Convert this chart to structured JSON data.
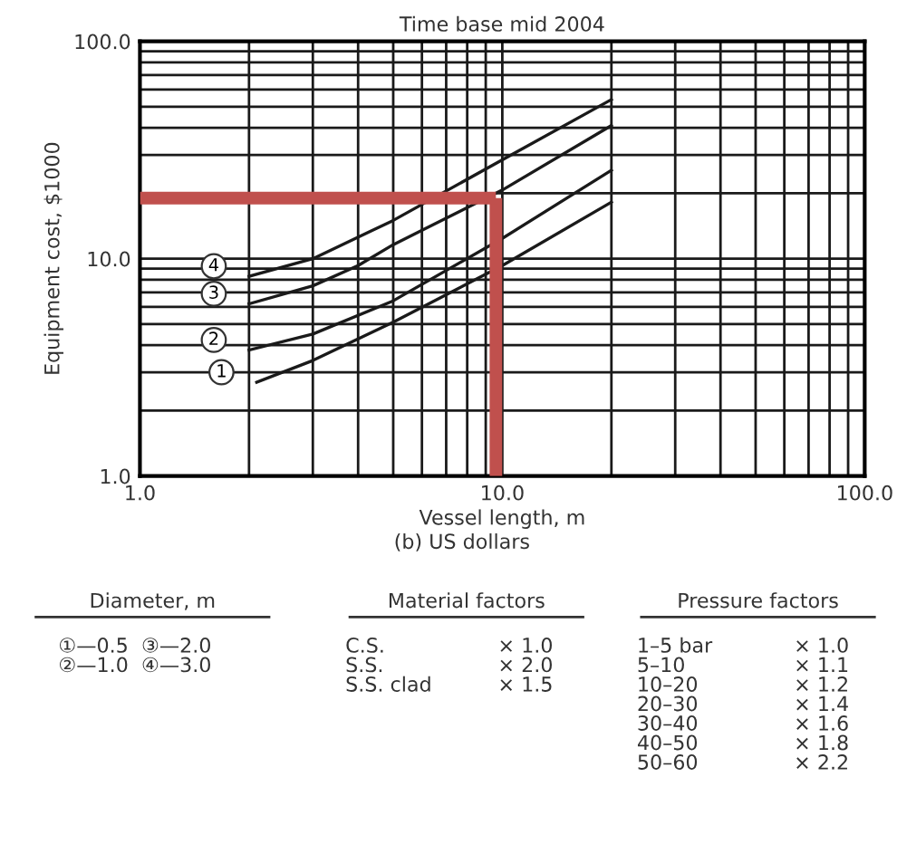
{
  "chart_data": {
    "type": "line",
    "title": "Time base mid 2004",
    "xlabel": "Vessel length, m",
    "ylabel": "Equipment cost, $1000",
    "log": "xy",
    "xlim": [
      1,
      100
    ],
    "ylim": [
      1,
      100
    ],
    "xticks": [
      {
        "value": 1,
        "label": "1.0"
      },
      {
        "value": 10,
        "label": "10.0"
      },
      {
        "value": 100,
        "label": "100.0"
      }
    ],
    "yticks": [
      {
        "value": 1,
        "label": "1.0"
      },
      {
        "value": 10,
        "label": "10.0"
      },
      {
        "value": 100,
        "label": "100.0"
      }
    ],
    "grid": true,
    "marker": "none",
    "line_style": "solid",
    "legend": false,
    "series": [
      {
        "name": "1",
        "color": "#1a1a1a",
        "x": [
          2.1,
          3,
          5,
          10,
          20
        ],
        "values": [
          2.7,
          3.4,
          5.1,
          9.3,
          18.2
        ]
      },
      {
        "name": "2",
        "color": "#1a1a1a",
        "x": [
          2,
          3,
          5,
          10,
          20
        ],
        "values": [
          3.8,
          4.5,
          6.4,
          12.4,
          25.5
        ]
      },
      {
        "name": "3",
        "color": "#1a1a1a",
        "x": [
          2,
          3,
          4,
          5,
          10,
          20
        ],
        "values": [
          6.2,
          7.5,
          9.3,
          11.6,
          20.7,
          41
        ]
      },
      {
        "name": "4",
        "color": "#1a1a1a",
        "x": [
          2,
          3,
          5,
          10,
          20
        ],
        "values": [
          8.3,
          10,
          15,
          28.5,
          54
        ]
      }
    ],
    "ref_lines": [
      {
        "axis": "x",
        "value": 9.6,
        "color": "#c0504d"
      },
      {
        "axis": "y",
        "value": 19,
        "color": "#c0504d"
      }
    ],
    "annotations": [
      "(b) US dollars",
      "Diameter, m",
      "①—0.5  ③—2.0\n②—1.0  ④—3.0",
      "Material factors",
      "C.S.\nS.S.\nS.S. clad",
      "× 1.0\n× 2.0\n× 1.5",
      "Pressure factors",
      "1–5 bar\n5–10\n10–20\n20–30\n30–40\n40–50\n50–60",
      "× 1.0\n× 1.1\n× 1.2\n× 1.4\n× 1.6\n× 1.8\n× 2.2"
    ]
  }
}
